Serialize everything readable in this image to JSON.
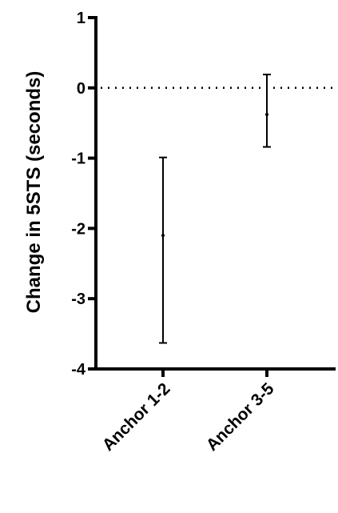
{
  "chart_data": {
    "type": "errorbar",
    "ylabel": "Change in 5STS (seconds)",
    "xlabel": "",
    "ylim": [
      -4,
      1
    ],
    "yticks": [
      "1",
      "0",
      "-1",
      "-2",
      "-3",
      "-4"
    ],
    "categories": [
      "Anchor 1-2",
      "Anchor 3-5"
    ],
    "series": [
      {
        "points": [
          {
            "category": "Anchor 1-2",
            "mean": -2.1,
            "lower": -3.63,
            "upper": -0.99
          },
          {
            "category": "Anchor 3-5",
            "mean": -0.38,
            "lower": -0.84,
            "upper": 0.19
          }
        ]
      }
    ],
    "reference_line": {
      "y": 0,
      "style": "dotted"
    },
    "grid": false,
    "legend": "none"
  }
}
